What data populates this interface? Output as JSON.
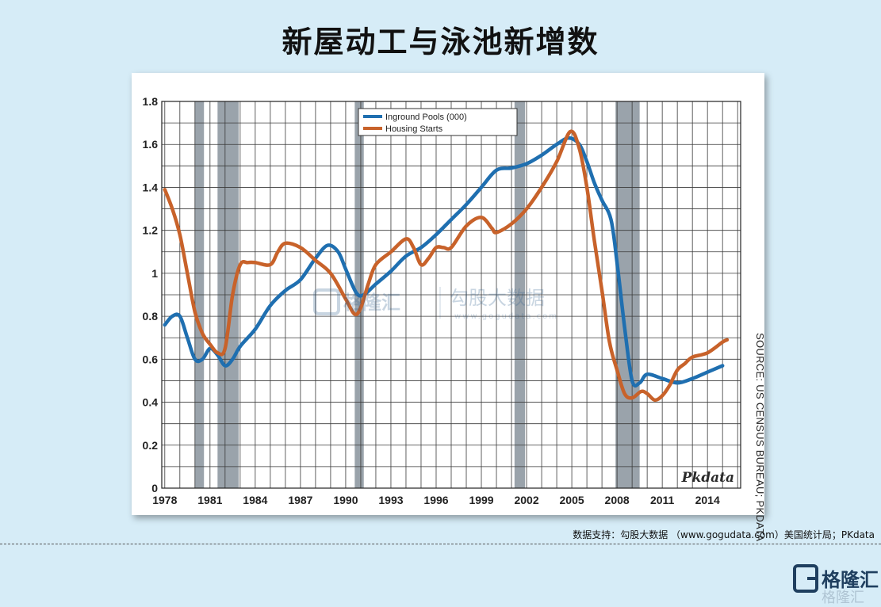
{
  "title": "新屋动工与泳池新增数",
  "source_vertical": "SOURCE: US CENSUS BUREAU; PKDATA",
  "footer_note": "数据支持：勾股大数据 （www.gogudata.com）美国统计局；PKdata",
  "brand_mark": "Pkdata",
  "watermark": {
    "left": "格隆汇",
    "right": "勾股大数据",
    "url": "www.gogudata.com"
  },
  "logo": {
    "text": "格隆汇"
  },
  "colors": {
    "pools": "#1f6fb0",
    "housing": "#c8622a",
    "recession": "#9aa3ab",
    "background": "#d6ecf7"
  },
  "chart_data": {
    "type": "line",
    "title": "",
    "xlabel": "",
    "ylabel": "",
    "xlim": [
      1977.8,
      2016.2
    ],
    "ylim": [
      0,
      1.8
    ],
    "x_ticks": [
      "1978",
      "1981",
      "1984",
      "1987",
      "1990",
      "1993",
      "1996",
      "1999",
      "2002",
      "2005",
      "2008",
      "2011",
      "2014"
    ],
    "y_ticks": [
      "0",
      "0.2",
      "0.4",
      "0.6",
      "0.8",
      "1",
      "1.2",
      "1.4",
      "1.6",
      "1.8"
    ],
    "grid": true,
    "legend_position": "top-center",
    "recessions": [
      [
        1980.0,
        1980.6
      ],
      [
        1981.5,
        1982.9
      ],
      [
        1990.6,
        1991.2
      ],
      [
        2001.2,
        2001.9
      ],
      [
        2007.9,
        2009.5
      ]
    ],
    "series": [
      {
        "name": "Inground Pools (000)",
        "points": [
          [
            1978,
            0.76
          ],
          [
            1978.5,
            0.8
          ],
          [
            1979,
            0.8
          ],
          [
            1979.5,
            0.7
          ],
          [
            1980,
            0.6
          ],
          [
            1980.5,
            0.6
          ],
          [
            1981,
            0.65
          ],
          [
            1981.5,
            0.62
          ],
          [
            1982,
            0.57
          ],
          [
            1982.5,
            0.6
          ],
          [
            1983,
            0.66
          ],
          [
            1984,
            0.74
          ],
          [
            1985,
            0.85
          ],
          [
            1986,
            0.92
          ],
          [
            1987,
            0.97
          ],
          [
            1988,
            1.07
          ],
          [
            1988.8,
            1.13
          ],
          [
            1989.5,
            1.1
          ],
          [
            1990,
            1.02
          ],
          [
            1990.7,
            0.91
          ],
          [
            1991.2,
            0.9
          ],
          [
            1992,
            0.95
          ],
          [
            1993,
            1.01
          ],
          [
            1994,
            1.08
          ],
          [
            1995,
            1.12
          ],
          [
            1996,
            1.18
          ],
          [
            1997,
            1.25
          ],
          [
            1998,
            1.32
          ],
          [
            1999,
            1.4
          ],
          [
            2000,
            1.48
          ],
          [
            2001,
            1.49
          ],
          [
            2002,
            1.51
          ],
          [
            2003,
            1.55
          ],
          [
            2004,
            1.6
          ],
          [
            2004.8,
            1.63
          ],
          [
            2005.5,
            1.6
          ],
          [
            2006,
            1.52
          ],
          [
            2006.5,
            1.42
          ],
          [
            2007,
            1.34
          ],
          [
            2007.6,
            1.25
          ],
          [
            2008,
            1.05
          ],
          [
            2008.5,
            0.75
          ],
          [
            2009,
            0.5
          ],
          [
            2009.5,
            0.49
          ],
          [
            2010,
            0.53
          ],
          [
            2011,
            0.51
          ],
          [
            2012,
            0.49
          ],
          [
            2013,
            0.51
          ],
          [
            2014,
            0.54
          ],
          [
            2015,
            0.57
          ]
        ]
      },
      {
        "name": "Housing Starts",
        "points": [
          [
            1978,
            1.39
          ],
          [
            1978.5,
            1.3
          ],
          [
            1979,
            1.18
          ],
          [
            1979.5,
            1.0
          ],
          [
            1980,
            0.82
          ],
          [
            1980.5,
            0.72
          ],
          [
            1981,
            0.67
          ],
          [
            1981.5,
            0.63
          ],
          [
            1982,
            0.65
          ],
          [
            1982.5,
            0.9
          ],
          [
            1983,
            1.04
          ],
          [
            1983.5,
            1.05
          ],
          [
            1984,
            1.05
          ],
          [
            1985,
            1.04
          ],
          [
            1985.5,
            1.1
          ],
          [
            1986,
            1.14
          ],
          [
            1987,
            1.12
          ],
          [
            1988,
            1.06
          ],
          [
            1989,
            1.0
          ],
          [
            1990,
            0.88
          ],
          [
            1990.6,
            0.81
          ],
          [
            1991,
            0.84
          ],
          [
            1991.5,
            0.95
          ],
          [
            1992,
            1.04
          ],
          [
            1993,
            1.1
          ],
          [
            1994,
            1.16
          ],
          [
            1994.5,
            1.12
          ],
          [
            1995,
            1.04
          ],
          [
            1995.5,
            1.07
          ],
          [
            1996,
            1.12
          ],
          [
            1996.5,
            1.12
          ],
          [
            1997,
            1.12
          ],
          [
            1998,
            1.22
          ],
          [
            1999,
            1.26
          ],
          [
            1999.7,
            1.21
          ],
          [
            2000,
            1.19
          ],
          [
            2001,
            1.23
          ],
          [
            2002,
            1.3
          ],
          [
            2003,
            1.4
          ],
          [
            2004,
            1.52
          ],
          [
            2004.9,
            1.66
          ],
          [
            2005.5,
            1.58
          ],
          [
            2006,
            1.4
          ],
          [
            2006.5,
            1.15
          ],
          [
            2007,
            0.92
          ],
          [
            2007.5,
            0.68
          ],
          [
            2008,
            0.55
          ],
          [
            2008.5,
            0.44
          ],
          [
            2009,
            0.42
          ],
          [
            2009.6,
            0.45
          ],
          [
            2010,
            0.44
          ],
          [
            2010.5,
            0.41
          ],
          [
            2011,
            0.43
          ],
          [
            2011.5,
            0.48
          ],
          [
            2012,
            0.55
          ],
          [
            2012.5,
            0.58
          ],
          [
            2013,
            0.61
          ],
          [
            2014,
            0.63
          ],
          [
            2015,
            0.68
          ],
          [
            2015.3,
            0.69
          ]
        ]
      }
    ]
  }
}
